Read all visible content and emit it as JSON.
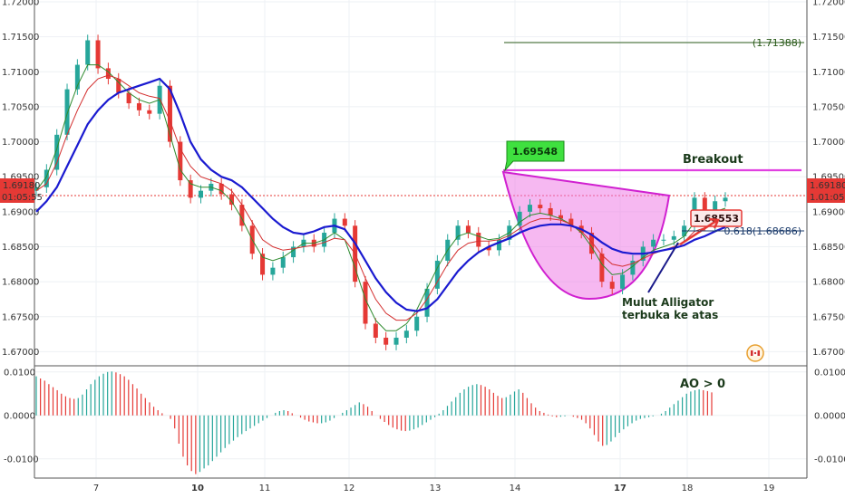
{
  "colors": {
    "up": "#26a69a",
    "down": "#e53935",
    "sma_fast": "#2e8b2e",
    "sma_mid": "#d32f2f",
    "sma_slow": "#1a1ad0",
    "magenta": "#e040e0",
    "label_green": "#3fe03f",
    "label_red": "#e53935",
    "grid": "#eef1f4",
    "text_dark": "#1b3a1b"
  },
  "chart_data": [
    {
      "type": "line",
      "name": "price",
      "x_ticks": [
        {
          "label": "7",
          "bold": false
        },
        {
          "label": "10",
          "bold": true
        },
        {
          "label": "11",
          "bold": false
        },
        {
          "label": "12",
          "bold": false
        },
        {
          "label": "13",
          "bold": false
        },
        {
          "label": "14",
          "bold": false
        },
        {
          "label": "17",
          "bold": true
        },
        {
          "label": "18",
          "bold": false
        },
        {
          "label": "19",
          "bold": false
        }
      ],
      "y_ticks": [
        "1.72000",
        "1.71500",
        "1.71000",
        "1.70500",
        "1.70000",
        "1.69500",
        "1.69000",
        "1.68500",
        "1.68000",
        "1.67500",
        "1.67000"
      ],
      "ylim": [
        1.6685,
        1.72
      ],
      "last_price": "1.69180",
      "countdown": "01:05:55",
      "right_countdown": "1.01:05",
      "close": [
        1.6935,
        1.696,
        1.701,
        1.7075,
        1.711,
        1.7145,
        1.7105,
        1.709,
        1.707,
        1.7055,
        1.7045,
        1.704,
        1.708,
        1.7,
        1.6945,
        1.692,
        1.693,
        1.694,
        1.6925,
        1.691,
        1.688,
        1.684,
        1.681,
        1.682,
        1.6835,
        1.685,
        1.686,
        1.685,
        1.687,
        1.689,
        1.688,
        1.68,
        1.674,
        1.672,
        1.671,
        1.672,
        1.673,
        1.675,
        1.679,
        1.683,
        1.686,
        1.688,
        1.687,
        1.685,
        1.6845,
        1.686,
        1.688,
        1.69,
        1.691,
        1.6905,
        1.6895,
        1.689,
        1.688,
        1.687,
        1.684,
        1.68,
        1.679,
        1.681,
        1.683,
        1.685,
        1.686,
        1.686,
        1.6865,
        1.688,
        1.692,
        1.688,
        1.6915,
        1.692
      ],
      "sma_fast": [
        1.693,
        1.695,
        1.699,
        1.704,
        1.708,
        1.711,
        1.711,
        1.71,
        1.7085,
        1.707,
        1.706,
        1.7055,
        1.706,
        1.701,
        1.696,
        1.694,
        1.6935,
        1.6935,
        1.693,
        1.6915,
        1.689,
        1.686,
        1.6835,
        1.683,
        1.6835,
        1.6845,
        1.6855,
        1.6855,
        1.686,
        1.687,
        1.686,
        1.682,
        1.6775,
        1.6745,
        1.673,
        1.673,
        1.674,
        1.676,
        1.679,
        1.682,
        1.6845,
        1.6865,
        1.687,
        1.6865,
        1.686,
        1.6862,
        1.687,
        1.6885,
        1.6895,
        1.6898,
        1.6895,
        1.689,
        1.6882,
        1.687,
        1.685,
        1.6825,
        1.681,
        1.6812,
        1.6822,
        1.6835,
        1.6845,
        1.685,
        1.6855,
        1.6865,
        1.6885,
        1.6885,
        1.69,
        1.6905
      ],
      "sma_mid": [
        1.693,
        1.694,
        1.697,
        1.701,
        1.7045,
        1.7075,
        1.709,
        1.7095,
        1.709,
        1.708,
        1.707,
        1.7065,
        1.7062,
        1.703,
        1.699,
        1.6965,
        1.695,
        1.6945,
        1.694,
        1.693,
        1.691,
        1.6885,
        1.686,
        1.685,
        1.6845,
        1.6847,
        1.685,
        1.6852,
        1.6856,
        1.6862,
        1.686,
        1.684,
        1.6805,
        1.6775,
        1.6755,
        1.6745,
        1.6745,
        1.6755,
        1.6775,
        1.68,
        1.6825,
        1.6845,
        1.6855,
        1.6858,
        1.6858,
        1.686,
        1.6866,
        1.6876,
        1.6885,
        1.689,
        1.689,
        1.6888,
        1.6882,
        1.6872,
        1.6857,
        1.6838,
        1.6825,
        1.6822,
        1.6826,
        1.6833,
        1.684,
        1.6845,
        1.685,
        1.6857,
        1.6872,
        1.6877,
        1.6888,
        1.6895
      ],
      "sma_slow": [
        1.69,
        1.6915,
        1.6935,
        1.6965,
        1.6995,
        1.7025,
        1.7045,
        1.706,
        1.707,
        1.7075,
        1.708,
        1.7085,
        1.709,
        1.7075,
        1.704,
        1.7,
        1.6975,
        1.696,
        1.695,
        1.6945,
        1.6935,
        1.692,
        1.6905,
        1.689,
        1.6878,
        1.687,
        1.6868,
        1.6872,
        1.6878,
        1.688,
        1.6875,
        1.6855,
        1.683,
        1.6805,
        1.6785,
        1.677,
        1.676,
        1.6758,
        1.6762,
        1.6775,
        1.6795,
        1.6815,
        1.683,
        1.6842,
        1.685,
        1.6856,
        1.6862,
        1.687,
        1.6876,
        1.688,
        1.6882,
        1.6882,
        1.688,
        1.6875,
        1.6867,
        1.6856,
        1.6847,
        1.6842,
        1.684,
        1.684,
        1.6842,
        1.6845,
        1.6848,
        1.6852,
        1.686,
        1.6865,
        1.6872,
        1.6878
      ],
      "annotations": {
        "level_top": "(1.71388)",
        "high_label": "1.69548",
        "breakout": "Breakout",
        "marker_label": "1.68553",
        "fib": "0.618(1.68686)",
        "comment_line1": "Mulut Alligator",
        "comment_line2": "terbuka ke atas"
      }
    },
    {
      "type": "bar",
      "name": "Awesome Oscillator",
      "y_ticks": [
        "0.0100",
        "0.0000",
        "-0.0100"
      ],
      "ylim": [
        -0.014,
        0.011
      ],
      "label": "AO > 0",
      "values": [
        0.009,
        0.0085,
        0.008,
        0.0072,
        0.0065,
        0.0058,
        0.005,
        0.0044,
        0.004,
        0.0038,
        0.004,
        0.0048,
        0.006,
        0.0072,
        0.0082,
        0.009,
        0.0096,
        0.01,
        0.0101,
        0.0099,
        0.0095,
        0.009,
        0.0082,
        0.0072,
        0.0062,
        0.005,
        0.004,
        0.003,
        0.002,
        0.0012,
        0.0005,
        0.0,
        -0.0008,
        -0.003,
        -0.0065,
        -0.0095,
        -0.0115,
        -0.0128,
        -0.0135,
        -0.013,
        -0.0122,
        -0.0115,
        -0.0105,
        -0.0095,
        -0.0085,
        -0.0075,
        -0.0066,
        -0.0058,
        -0.005,
        -0.0043,
        -0.0036,
        -0.003,
        -0.0024,
        -0.0018,
        -0.0012,
        -0.0006,
        0.0,
        0.0006,
        0.001,
        0.0012,
        0.001,
        0.0005,
        0.0,
        -0.0005,
        -0.001,
        -0.0014,
        -0.0016,
        -0.0018,
        -0.0018,
        -0.0016,
        -0.0012,
        -0.0006,
        0.0,
        0.0006,
        0.0012,
        0.0018,
        0.0024,
        0.003,
        0.0026,
        0.002,
        0.001,
        0.0,
        -0.0008,
        -0.0015,
        -0.0022,
        -0.0028,
        -0.0032,
        -0.0035,
        -0.0036,
        -0.0035,
        -0.0032,
        -0.0028,
        -0.0022,
        -0.0016,
        -0.001,
        -0.0004,
        0.0004,
        0.0012,
        0.0022,
        0.0032,
        0.0042,
        0.0052,
        0.006,
        0.0066,
        0.007,
        0.0072,
        0.007,
        0.0066,
        0.006,
        0.0052,
        0.0045,
        0.004,
        0.0042,
        0.0048,
        0.0055,
        0.006,
        0.0052,
        0.004,
        0.0028,
        0.0018,
        0.001,
        0.0006,
        0.0002,
        -0.0002,
        -0.0004,
        -0.0003,
        -0.0002,
        0.0,
        -0.0003,
        -0.0006,
        -0.001,
        -0.0018,
        -0.003,
        -0.0045,
        -0.006,
        -0.007,
        -0.0068,
        -0.006,
        -0.005,
        -0.004,
        -0.0032,
        -0.0025,
        -0.0018,
        -0.0012,
        -0.0008,
        -0.0006,
        -0.0004,
        -0.0002,
        0.0,
        0.0004,
        0.001,
        0.0018,
        0.0026,
        0.0034,
        0.0042,
        0.005,
        0.0055,
        0.0058,
        0.006,
        0.0058,
        0.0056,
        0.0053
      ]
    }
  ]
}
